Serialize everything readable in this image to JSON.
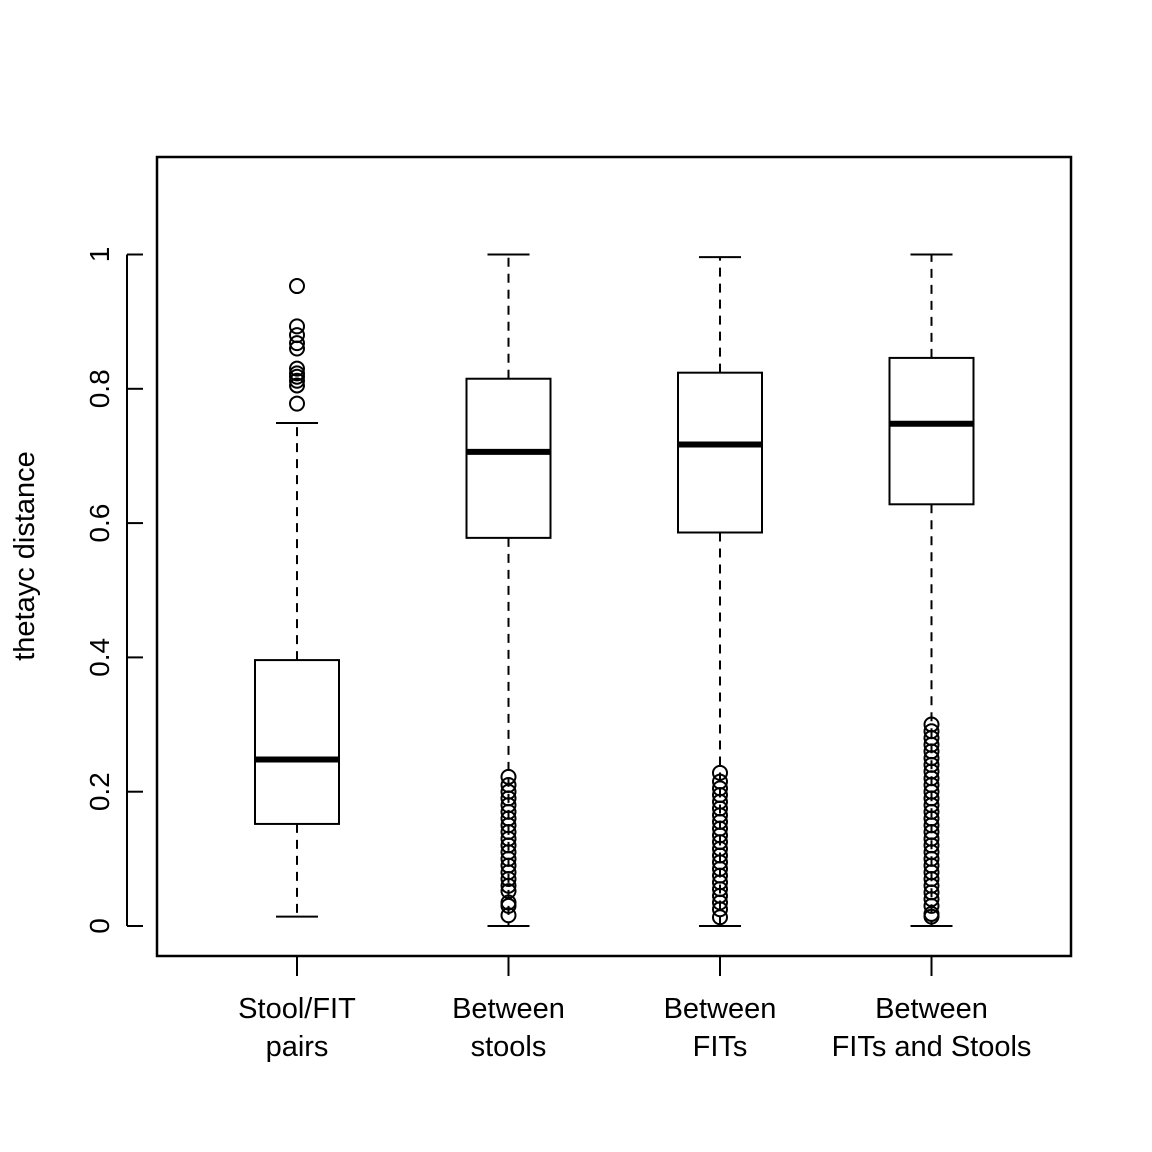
{
  "chart_data": {
    "type": "boxplot",
    "title": "",
    "xlabel": "",
    "ylabel": "thetayc distance",
    "ylim": [
      -0.045,
      1.14
    ],
    "yticks": [
      0,
      0.2,
      0.4,
      0.6,
      0.8,
      1
    ],
    "ytick_labels": [
      "0",
      "0.2",
      "0.4",
      "0.6",
      "0.8",
      "1"
    ],
    "grid": false,
    "categories": [
      [
        "Stool/FIT",
        "pairs"
      ],
      [
        "Between",
        "stools"
      ],
      [
        "Between",
        "FITs"
      ],
      [
        "Between",
        "FITs and Stools"
      ]
    ],
    "boxes": [
      {
        "whisker_low": 0.014,
        "q1": 0.152,
        "median": 0.248,
        "q3": 0.396,
        "whisker_high": 0.749,
        "outliers": [
          0.778,
          0.805,
          0.812,
          0.818,
          0.823,
          0.83,
          0.86,
          0.868,
          0.88,
          0.893,
          0.953
        ]
      },
      {
        "whisker_low": 0.0,
        "q1": 0.578,
        "median": 0.706,
        "q3": 0.815,
        "whisker_high": 1.0,
        "outliers": [
          0.016,
          0.03,
          0.035,
          0.052,
          0.06,
          0.07,
          0.08,
          0.09,
          0.1,
          0.11,
          0.12,
          0.13,
          0.14,
          0.15,
          0.16,
          0.17,
          0.18,
          0.19,
          0.2,
          0.21,
          0.222
        ]
      },
      {
        "whisker_low": 0.0,
        "q1": 0.586,
        "median": 0.717,
        "q3": 0.824,
        "whisker_high": 0.996,
        "outliers": [
          0.013,
          0.025,
          0.035,
          0.045,
          0.055,
          0.065,
          0.075,
          0.085,
          0.095,
          0.105,
          0.115,
          0.125,
          0.135,
          0.145,
          0.155,
          0.165,
          0.175,
          0.185,
          0.195,
          0.205,
          0.215,
          0.228
        ]
      },
      {
        "whisker_low": 0.0,
        "q1": 0.628,
        "median": 0.748,
        "q3": 0.846,
        "whisker_high": 1.0,
        "outliers": [
          0.014,
          0.018,
          0.03,
          0.04,
          0.05,
          0.06,
          0.07,
          0.08,
          0.09,
          0.1,
          0.11,
          0.12,
          0.13,
          0.14,
          0.15,
          0.16,
          0.17,
          0.18,
          0.19,
          0.2,
          0.21,
          0.22,
          0.23,
          0.24,
          0.25,
          0.26,
          0.27,
          0.28,
          0.29,
          0.3
        ]
      }
    ]
  }
}
